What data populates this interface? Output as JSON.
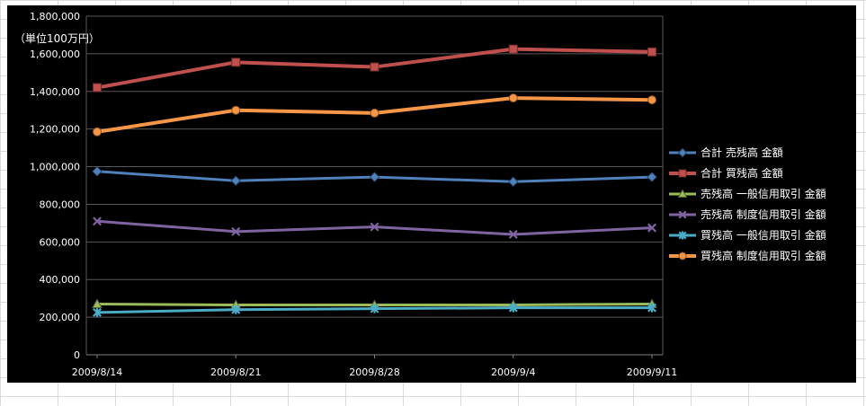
{
  "chart_data": {
    "type": "line",
    "title": "",
    "unit_label": "（単位100万円）",
    "categories": [
      "2009/8/14",
      "2009/8/21",
      "2009/8/28",
      "2009/9/4",
      "2009/9/11"
    ],
    "series": [
      {
        "name": "合計 売残高 金額",
        "color": "#4F81BD",
        "marker": "diamond",
        "width": 3,
        "values": [
          975000,
          925000,
          945000,
          920000,
          945000
        ]
      },
      {
        "name": "合計 買残高 金額",
        "color": "#C0504D",
        "marker": "square",
        "width": 4,
        "values": [
          1420000,
          1555000,
          1530000,
          1625000,
          1610000
        ]
      },
      {
        "name": "売残高 一般信用取引 金額",
        "color": "#9BBB59",
        "marker": "triangle",
        "width": 3,
        "values": [
          270000,
          265000,
          265000,
          265000,
          270000
        ]
      },
      {
        "name": "売残高 制度信用取引 金額",
        "color": "#8064A2",
        "marker": "x",
        "width": 3,
        "values": [
          710000,
          655000,
          680000,
          640000,
          675000
        ]
      },
      {
        "name": "買残高 一般信用取引 金額",
        "color": "#4BACC6",
        "marker": "star",
        "width": 3,
        "values": [
          225000,
          240000,
          245000,
          250000,
          250000
        ]
      },
      {
        "name": "買残高 制度信用取引 金額",
        "color": "#F79646",
        "marker": "circle",
        "width": 4,
        "values": [
          1185000,
          1300000,
          1285000,
          1365000,
          1355000
        ]
      }
    ],
    "ylim": [
      0,
      1800000
    ],
    "ytick_step": 200000,
    "y_tick_labels": [
      "0",
      "200,000",
      "400,000",
      "600,000",
      "800,000",
      "1,000,000",
      "1,200,000",
      "1,400,000",
      "1,600,000",
      "1,800,000"
    ],
    "grid": true,
    "legend_position": "right",
    "background_color": "#000000",
    "gridline_color": "#595959",
    "axis_line_color": "#7f7f7f",
    "text_color": "#ffffff"
  }
}
